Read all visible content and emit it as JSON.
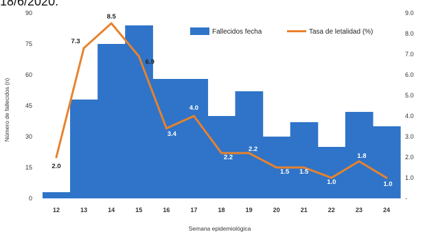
{
  "top_text": "18/6/2020.",
  "chart_data": {
    "type": "bar",
    "categories": [
      "12",
      "13",
      "14",
      "15",
      "16",
      "17",
      "18",
      "19",
      "20",
      "21",
      "22",
      "23",
      "24"
    ],
    "xlabel": "Semana epidemiológica",
    "ylabel": "Número de fallecidos (n)",
    "y_left_ticks": [
      "0",
      "15",
      "30",
      "45",
      "60",
      "75",
      "90"
    ],
    "y_right_ticks": [
      "-",
      "1.0",
      "2.0",
      "3.0",
      "4.0",
      "5.0",
      "6.0",
      "7.0",
      "8.0",
      "9.0"
    ],
    "ylim_left": [
      0,
      90
    ],
    "ylim_right": [
      0,
      9
    ],
    "grid": false,
    "legend_position": "top-right",
    "colors": {
      "bar": "#2f74c8",
      "line": "#e8822d"
    },
    "series": [
      {
        "name": "Fallecidos fecha",
        "kind": "bar",
        "axis": "left",
        "values": [
          3,
          48,
          75,
          84,
          58,
          58,
          40,
          52,
          30,
          37,
          25,
          42,
          35
        ]
      },
      {
        "name": "Tasa de letalidad (%)",
        "kind": "line",
        "axis": "right",
        "values": [
          2.0,
          7.3,
          8.5,
          6.9,
          3.4,
          4.0,
          2.2,
          2.2,
          1.5,
          1.5,
          1.0,
          1.8,
          1.0
        ],
        "labels": [
          "2.0",
          "7.3",
          "8.5",
          "6.9",
          "3.4",
          "4.0",
          "2.2",
          "2.2",
          "1.5",
          "1.5",
          "1.0",
          "1.8",
          "1.0"
        ]
      }
    ]
  }
}
